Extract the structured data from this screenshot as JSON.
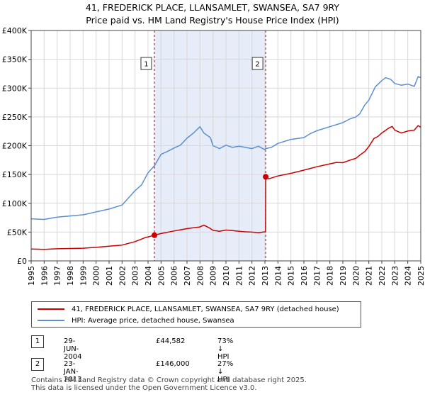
{
  "title_line1": "41, FREDERICK PLACE, LLANSAMLET, SWANSEA, SA7 9RY",
  "title_line2": "Price paid vs. HM Land Registry's House Price Index (HPI)",
  "colors": {
    "property": "#cc0000",
    "hpi": "#5b8fd0",
    "shade": "#e6ecf8",
    "grid": "#d8d8d8",
    "vline": "#cc0000"
  },
  "chart_data": {
    "type": "line",
    "xlim": [
      1995,
      2025
    ],
    "ylim": [
      0,
      400000
    ],
    "x_ticks": [
      "1995",
      "1996",
      "1997",
      "1998",
      "1999",
      "2000",
      "2001",
      "2002",
      "2003",
      "2004",
      "2005",
      "2006",
      "2007",
      "2008",
      "2009",
      "2010",
      "2011",
      "2012",
      "2013",
      "2014",
      "2015",
      "2016",
      "2017",
      "2018",
      "2019",
      "2020",
      "2021",
      "2022",
      "2023",
      "2024",
      "2025"
    ],
    "y_ticks": [
      {
        "value": 0,
        "label": "£0"
      },
      {
        "value": 50000,
        "label": "£50K"
      },
      {
        "value": 100000,
        "label": "£100K"
      },
      {
        "value": 150000,
        "label": "£150K"
      },
      {
        "value": 200000,
        "label": "£200K"
      },
      {
        "value": 250000,
        "label": "£250K"
      },
      {
        "value": 300000,
        "label": "£300K"
      },
      {
        "value": 350000,
        "label": "£350K"
      },
      {
        "value": 400000,
        "label": "£400K"
      }
    ],
    "shaded_range": [
      2004.49,
      2013.06
    ],
    "markers": [
      {
        "label": "1",
        "x": 2004.49,
        "y": 44582
      },
      {
        "label": "2",
        "x": 2013.06,
        "y": 146000
      }
    ],
    "series": [
      {
        "name": "41, FREDERICK PLACE, LLANSAMLET, SWANSEA, SA7 9RY (detached house)",
        "color": "#cc0000",
        "points": [
          [
            1995.0,
            20500
          ],
          [
            1996.0,
            20000
          ],
          [
            1997.0,
            21000
          ],
          [
            1998.0,
            21500
          ],
          [
            1999.0,
            22000
          ],
          [
            2000.0,
            23500
          ],
          [
            2001.0,
            25500
          ],
          [
            2002.0,
            27500
          ],
          [
            2003.0,
            33500
          ],
          [
            2003.8,
            40500
          ],
          [
            2004.49,
            44582
          ],
          [
            2005.0,
            47500
          ],
          [
            2006.0,
            52000
          ],
          [
            2007.0,
            56000
          ],
          [
            2007.5,
            57500
          ],
          [
            2008.0,
            59000
          ],
          [
            2008.3,
            62000
          ],
          [
            2008.7,
            57500
          ],
          [
            2009.0,
            53000
          ],
          [
            2009.5,
            51500
          ],
          [
            2010.0,
            53500
          ],
          [
            2010.5,
            52500
          ],
          [
            2011.0,
            51500
          ],
          [
            2011.5,
            50500
          ],
          [
            2012.0,
            50000
          ],
          [
            2012.5,
            49000
          ],
          [
            2013.0,
            50500
          ],
          [
            2013.05,
            50500
          ],
          [
            2013.06,
            146000
          ],
          [
            2013.3,
            142500
          ],
          [
            2014.0,
            147500
          ],
          [
            2015.0,
            152000
          ],
          [
            2016.0,
            157500
          ],
          [
            2017.0,
            163500
          ],
          [
            2018.0,
            168500
          ],
          [
            2018.5,
            171000
          ],
          [
            2019.0,
            170500
          ],
          [
            2019.5,
            174500
          ],
          [
            2020.0,
            178000
          ],
          [
            2020.3,
            183500
          ],
          [
            2020.7,
            190000
          ],
          [
            2021.0,
            198500
          ],
          [
            2021.4,
            212500
          ],
          [
            2021.7,
            216000
          ],
          [
            2022.0,
            222000
          ],
          [
            2022.5,
            230000
          ],
          [
            2022.8,
            233500
          ],
          [
            2023.0,
            227000
          ],
          [
            2023.5,
            222000
          ],
          [
            2024.0,
            225500
          ],
          [
            2024.5,
            227000
          ],
          [
            2024.8,
            235000
          ],
          [
            2025.0,
            232000
          ]
        ]
      },
      {
        "name": "HPI: Average price, detached house, Swansea",
        "color": "#5b8fd0",
        "points": [
          [
            1995.0,
            73000
          ],
          [
            1996.0,
            72000
          ],
          [
            1997.0,
            76000
          ],
          [
            1998.0,
            78000
          ],
          [
            1999.0,
            80000
          ],
          [
            2000.0,
            85000
          ],
          [
            2001.0,
            90000
          ],
          [
            2002.0,
            97000
          ],
          [
            2003.0,
            122000
          ],
          [
            2003.5,
            132000
          ],
          [
            2004.0,
            153000
          ],
          [
            2004.49,
            165000
          ],
          [
            2005.0,
            185000
          ],
          [
            2005.5,
            190000
          ],
          [
            2006.0,
            196000
          ],
          [
            2006.5,
            201000
          ],
          [
            2007.0,
            213000
          ],
          [
            2007.5,
            222000
          ],
          [
            2008.0,
            233000
          ],
          [
            2008.3,
            222000
          ],
          [
            2008.8,
            214000
          ],
          [
            2009.0,
            200000
          ],
          [
            2009.5,
            195000
          ],
          [
            2010.0,
            201000
          ],
          [
            2010.5,
            197000
          ],
          [
            2011.0,
            199000
          ],
          [
            2011.5,
            197000
          ],
          [
            2012.0,
            195000
          ],
          [
            2012.5,
            199000
          ],
          [
            2013.0,
            193000
          ],
          [
            2013.06,
            195000
          ],
          [
            2013.5,
            197000
          ],
          [
            2014.0,
            204000
          ],
          [
            2015.0,
            211000
          ],
          [
            2016.0,
            214000
          ],
          [
            2016.5,
            221000
          ],
          [
            2017.0,
            226000
          ],
          [
            2018.0,
            233000
          ],
          [
            2019.0,
            240000
          ],
          [
            2019.5,
            246000
          ],
          [
            2020.0,
            250000
          ],
          [
            2020.3,
            255000
          ],
          [
            2020.7,
            271000
          ],
          [
            2021.0,
            279000
          ],
          [
            2021.5,
            302000
          ],
          [
            2022.0,
            313000
          ],
          [
            2022.3,
            318000
          ],
          [
            2022.7,
            315000
          ],
          [
            2023.0,
            308000
          ],
          [
            2023.5,
            305000
          ],
          [
            2024.0,
            307000
          ],
          [
            2024.5,
            303000
          ],
          [
            2024.8,
            320000
          ],
          [
            2025.0,
            318000
          ]
        ]
      }
    ]
  },
  "legend": {
    "property_label": "41, FREDERICK PLACE, LLANSAMLET, SWANSEA, SA7 9RY (detached house)",
    "hpi_label": "HPI: Average price, detached house, Swansea"
  },
  "transactions": [
    {
      "num": "1",
      "date": "29-JUN-2004",
      "price": "£44,582",
      "hpi": "73% ↓ HPI"
    },
    {
      "num": "2",
      "date": "23-JAN-2013",
      "price": "£146,000",
      "hpi": "27% ↓ HPI"
    }
  ],
  "footer_line1": "Contains HM Land Registry data © Crown copyright and database right 2025.",
  "footer_line2": "This data is licensed under the Open Government Licence v3.0."
}
